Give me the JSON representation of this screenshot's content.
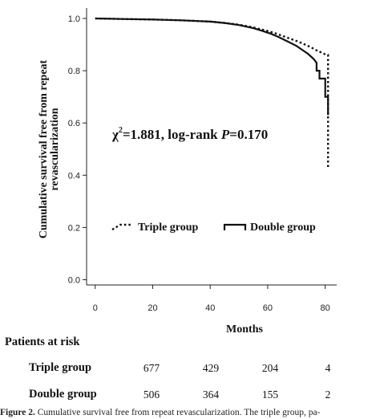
{
  "chart_data": {
    "type": "line",
    "subtype": "kaplan-meier",
    "title": "",
    "xlabel": "Months",
    "ylabel_line1": "Cumulative survival free from repeat",
    "ylabel_line2": "revascularization",
    "xlim": [
      -3,
      84
    ],
    "ylim": [
      -0.02,
      1.04
    ],
    "xticks": [
      0,
      20,
      40,
      60,
      80
    ],
    "yticks": [
      0.0,
      0.2,
      0.4,
      0.6,
      0.8,
      1.0
    ],
    "ytick_labels": [
      "0.0",
      "0.2",
      "0.4",
      "0.6",
      "0.8",
      "1.0"
    ],
    "grid": false,
    "annotation": {
      "chi": "χ",
      "sup": "2",
      "rest": "=1.881, log-rank ",
      "p": "P",
      "pval": "=0.170"
    },
    "legend_position": "center",
    "series": [
      {
        "name": "Triple group",
        "style": "dotted",
        "color": "#111111",
        "x": [
          0,
          10,
          20,
          30,
          40,
          45,
          50,
          55,
          60,
          63,
          66,
          69,
          72,
          75,
          77,
          79,
          80.5,
          81,
          81,
          81
        ],
        "y": [
          1.0,
          0.998,
          0.996,
          0.993,
          0.988,
          0.983,
          0.976,
          0.966,
          0.952,
          0.942,
          0.93,
          0.918,
          0.905,
          0.89,
          0.878,
          0.868,
          0.86,
          0.86,
          0.6,
          0.43
        ]
      },
      {
        "name": "Double group",
        "style": "solid",
        "color": "#111111",
        "x": [
          0,
          10,
          20,
          30,
          40,
          45,
          50,
          55,
          58,
          61,
          64,
          67,
          70,
          72,
          74,
          76,
          77,
          77,
          78,
          78,
          80,
          80,
          81,
          81
        ],
        "y": [
          1.0,
          0.998,
          0.996,
          0.993,
          0.988,
          0.983,
          0.975,
          0.963,
          0.953,
          0.942,
          0.928,
          0.912,
          0.895,
          0.88,
          0.865,
          0.845,
          0.83,
          0.8,
          0.8,
          0.77,
          0.77,
          0.7,
          0.7,
          0.63
        ]
      }
    ]
  },
  "risk_table": {
    "title": "Patients at risk",
    "rows": [
      {
        "label": "Triple group",
        "values": [
          "677",
          "429",
          "204",
          "4"
        ]
      },
      {
        "label": "Double group",
        "values": [
          "506",
          "364",
          "155",
          "2"
        ]
      }
    ]
  },
  "caption": {
    "label": "Figure 2.",
    "text": "Cumulative survival free from repeat revascularization. The triple group, pa-"
  }
}
